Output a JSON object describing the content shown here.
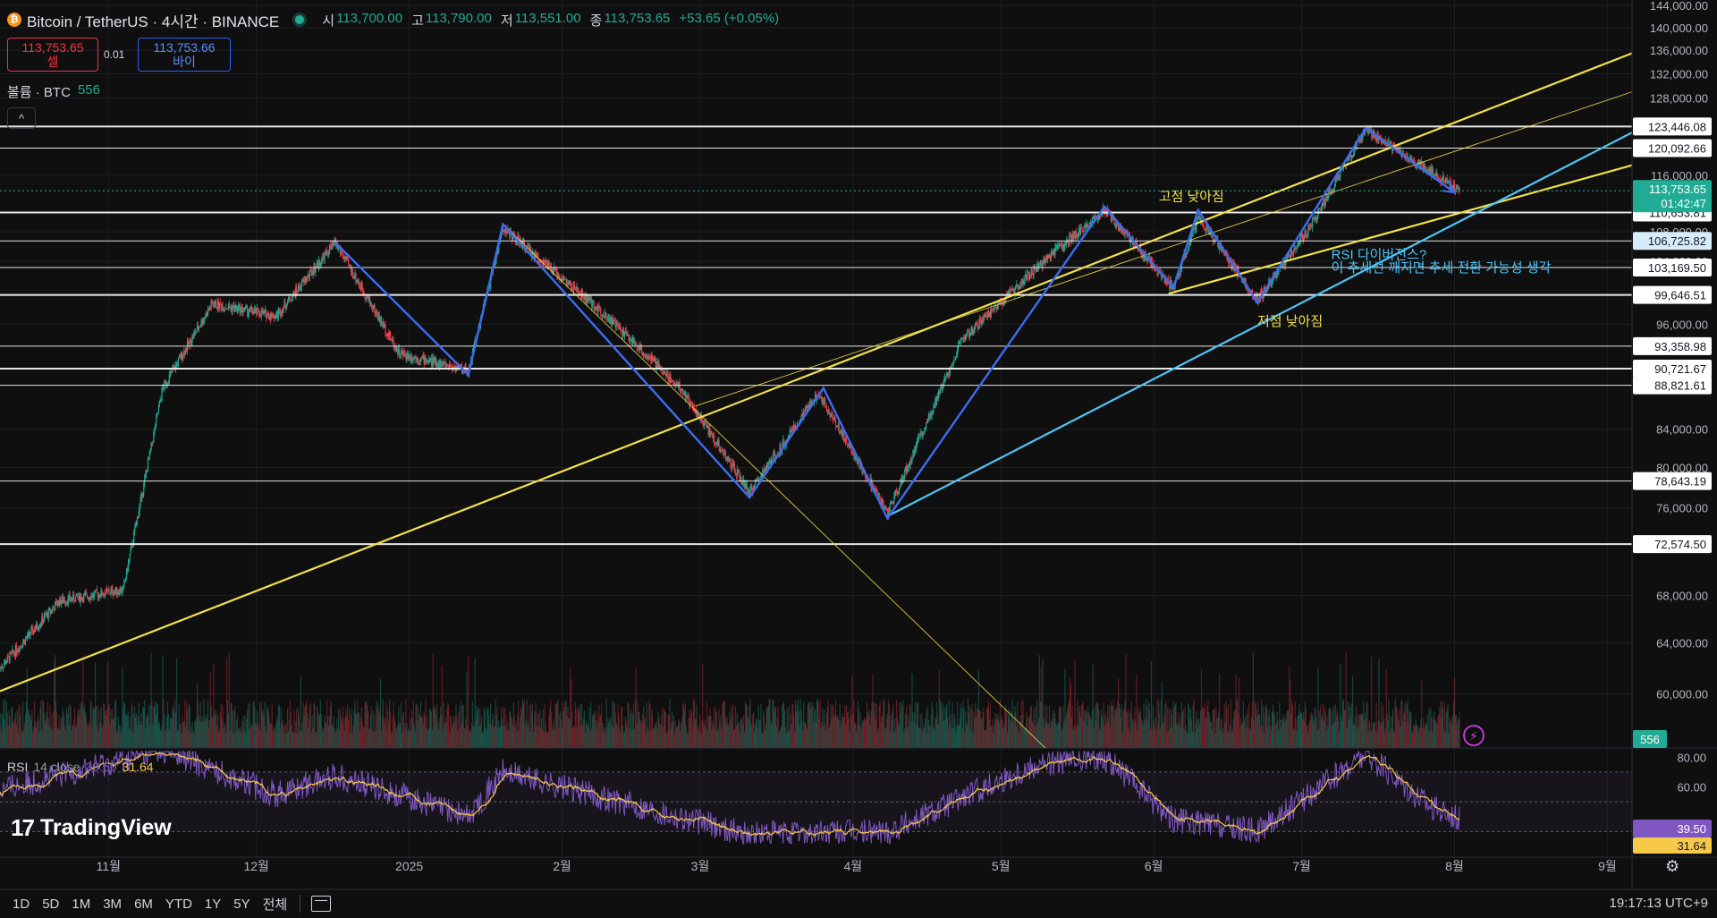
{
  "header": {
    "symbol": "Bitcoin / TetherUS · 4시간 · BINANCE",
    "coin_glyph": "₿",
    "open_label": "시",
    "open": "113,700.00",
    "high_label": "고",
    "high": "113,790.00",
    "low_label": "저",
    "low": "113,551.00",
    "close_label": "종",
    "close": "113,753.65",
    "change": "+53.65 (+0.05%)"
  },
  "trade": {
    "sell_price": "113,753.65",
    "sell_label": "셀",
    "qty": "0.01",
    "buy_price": "113,753.66",
    "buy_label": "바이"
  },
  "volume_legend": {
    "label": "볼륨 · BTC",
    "value": "556"
  },
  "collapse_glyph": "^",
  "rsi_legend": {
    "label": "RSI",
    "params": "14 close",
    "rsi": "39.50",
    "ma": "31.64"
  },
  "brand": {
    "logo": "17",
    "name": "TradingView"
  },
  "toolbar": {
    "timeframes": [
      "1D",
      "5D",
      "1M",
      "3M",
      "6M",
      "YTD",
      "1Y",
      "5Y",
      "전체"
    ],
    "clock": "19:17:13 UTC+9"
  },
  "colors": {
    "up": "#22ab94",
    "down": "#f23645",
    "trend_yellow": "#f0e14a",
    "trend_cyan": "#4fc3f7",
    "zigzag": "#3d6cf0",
    "rsi": "#7e57c2",
    "rsi_ma": "#f7c948"
  },
  "chart_data": {
    "type": "candlestick",
    "symbol": "Bitcoin / TetherUS",
    "interval": "4시간",
    "exchange": "BINANCE",
    "y_scale": "log",
    "ylim": [
      56000,
      144000
    ],
    "y_ticks": [
      144000,
      140000,
      136000,
      132000,
      128000,
      116000,
      108000,
      104000,
      96000,
      84000,
      80000,
      76000,
      68000,
      64000,
      60000
    ],
    "y_tick_labels": [
      "144,000.00",
      "140,000.00",
      "136,000.00",
      "132,000.00",
      "128,000.00",
      "116,000.00",
      "108,000.00",
      "104,000.00",
      "96,000.00",
      "84,000.00",
      "80,000.00",
      "76,000.00",
      "68,000.00",
      "64,000.00",
      "60,000.00"
    ],
    "x_labels": [
      "11월",
      "12월",
      "2025",
      "2월",
      "3월",
      "4월",
      "5월",
      "6월",
      "7월",
      "8월",
      "9월"
    ],
    "x_label_dates": [
      "2024-11-01",
      "2024-12-01",
      "2025-01-01",
      "2025-02-01",
      "2025-03-01",
      "2025-04-01",
      "2025-05-01",
      "2025-06-01",
      "2025-07-01",
      "2025-08-01",
      "2025-09-01"
    ],
    "x_range": [
      "2024-10-10",
      "2025-09-06"
    ],
    "price_path": [
      {
        "date": "2024-10-10",
        "price": 62000
      },
      {
        "date": "2024-10-22",
        "price": 67500
      },
      {
        "date": "2024-11-04",
        "price": 68500
      },
      {
        "date": "2024-11-12",
        "price": 88500
      },
      {
        "date": "2024-11-22",
        "price": 98500
      },
      {
        "date": "2024-12-05",
        "price": 97000
      },
      {
        "date": "2024-12-17",
        "price": 106500
      },
      {
        "date": "2024-12-30",
        "price": 92500
      },
      {
        "date": "2025-01-13",
        "price": 90500
      },
      {
        "date": "2025-01-20",
        "price": 108500
      },
      {
        "date": "2025-02-10",
        "price": 97000
      },
      {
        "date": "2025-02-25",
        "price": 88500
      },
      {
        "date": "2025-03-11",
        "price": 77500
      },
      {
        "date": "2025-03-25",
        "price": 88000
      },
      {
        "date": "2025-04-08",
        "price": 75500
      },
      {
        "date": "2025-04-23",
        "price": 94000
      },
      {
        "date": "2025-05-08",
        "price": 103000
      },
      {
        "date": "2025-05-22",
        "price": 111000
      },
      {
        "date": "2025-06-05",
        "price": 100500
      },
      {
        "date": "2025-06-10",
        "price": 110000
      },
      {
        "date": "2025-06-22",
        "price": 99000
      },
      {
        "date": "2025-07-03",
        "price": 109000
      },
      {
        "date": "2025-07-14",
        "price": 123000
      },
      {
        "date": "2025-07-24",
        "price": 118000
      },
      {
        "date": "2025-08-02",
        "price": 113753.65
      }
    ],
    "last_price": "113,753.65",
    "countdown": "01:42:47",
    "horizontal_levels": [
      {
        "price": 123446.08,
        "label": "123,446.08"
      },
      {
        "price": 120092.66,
        "label": "120,092.66"
      },
      {
        "price": 110653.81,
        "label": "110,653.81"
      },
      {
        "price": 106725.82,
        "label": "106,725.82"
      },
      {
        "price": 103169.5,
        "label": "103,169.50"
      },
      {
        "price": 99646.51,
        "label": "99,646.51"
      },
      {
        "price": 93358.98,
        "label": "93,358.98"
      },
      {
        "price": 90721.67,
        "label": "90,721.67"
      },
      {
        "price": 88821.61,
        "label": "88,821.61"
      },
      {
        "price": 78643.19,
        "label": "78,643.19"
      },
      {
        "price": 72574.5,
        "label": "72,574.50"
      }
    ],
    "zigzag": [
      {
        "date": "2024-12-17",
        "price": 106500
      },
      {
        "date": "2025-01-13",
        "price": 90000
      },
      {
        "date": "2025-01-20",
        "price": 109000
      },
      {
        "date": "2025-03-11",
        "price": 77000
      },
      {
        "date": "2025-03-26",
        "price": 88500
      },
      {
        "date": "2025-04-08",
        "price": 75000
      },
      {
        "date": "2025-05-22",
        "price": 111500
      },
      {
        "date": "2025-06-05",
        "price": 100500
      },
      {
        "date": "2025-06-10",
        "price": 111000
      },
      {
        "date": "2025-06-22",
        "price": 98700
      },
      {
        "date": "2025-07-14",
        "price": 123200
      },
      {
        "date": "2025-08-01",
        "price": 113500
      }
    ],
    "trendlines": [
      {
        "color": "yellow",
        "from": {
          "date": "2024-10-10",
          "price": 60200
        },
        "to": {
          "date": "2025-09-06",
          "price": 135500
        }
      },
      {
        "color": "yellow-thin",
        "from": {
          "date": "2025-02-28",
          "price": 86500
        },
        "to": {
          "date": "2025-09-06",
          "price": 129000
        }
      },
      {
        "color": "yellow-thin",
        "from": {
          "date": "2025-01-20",
          "price": 109000
        },
        "to": {
          "date": "2025-05-10",
          "price": 56000
        }
      },
      {
        "color": "yellow",
        "from": {
          "date": "2025-06-04",
          "price": 99800
        },
        "to": {
          "date": "2025-09-06",
          "price": 117500
        }
      },
      {
        "color": "cyan",
        "from": {
          "date": "2025-04-08",
          "price": 75200
        },
        "to": {
          "date": "2025-09-06",
          "price": 122500
        }
      }
    ],
    "annotations": [
      {
        "text": "고점 낮아짐",
        "date": "2025-06-02",
        "price": 112300,
        "color": "yellow"
      },
      {
        "text": "저점 낮아짐",
        "date": "2025-06-22",
        "price": 95800,
        "color": "yellow"
      },
      {
        "text": "RSI 다이버전스?",
        "date": "2025-07-07",
        "price": 104300,
        "color": "cyan"
      },
      {
        "text": "이 추세선 깨지면 추세 전환 가능성 생각",
        "date": "2025-07-07",
        "price": 102600,
        "color": "cyan"
      }
    ],
    "volume": {
      "label": "볼륨 · BTC",
      "last": 556,
      "axis_label": "556"
    },
    "rsi": {
      "length": 14,
      "source": "close",
      "value": 39.5,
      "ma": 31.64,
      "ylim": [
        20,
        85
      ],
      "y_ticks": [
        80,
        60
      ],
      "y_tick_labels": [
        "80.00",
        "60.00"
      ],
      "bands": [
        70,
        50,
        30
      ],
      "path": [
        {
          "date": "2024-10-10",
          "value": 58
        },
        {
          "date": "2024-11-12",
          "value": 85
        },
        {
          "date": "2024-12-05",
          "value": 55
        },
        {
          "date": "2024-12-17",
          "value": 68
        },
        {
          "date": "2025-01-13",
          "value": 40
        },
        {
          "date": "2025-01-20",
          "value": 70
        },
        {
          "date": "2025-03-11",
          "value": 28
        },
        {
          "date": "2025-04-08",
          "value": 30
        },
        {
          "date": "2025-05-08",
          "value": 75
        },
        {
          "date": "2025-05-22",
          "value": 80
        },
        {
          "date": "2025-06-05",
          "value": 38
        },
        {
          "date": "2025-06-22",
          "value": 30
        },
        {
          "date": "2025-07-14",
          "value": 82
        },
        {
          "date": "2025-07-28",
          "value": 45
        },
        {
          "date": "2025-08-02",
          "value": 39.5
        }
      ]
    }
  }
}
